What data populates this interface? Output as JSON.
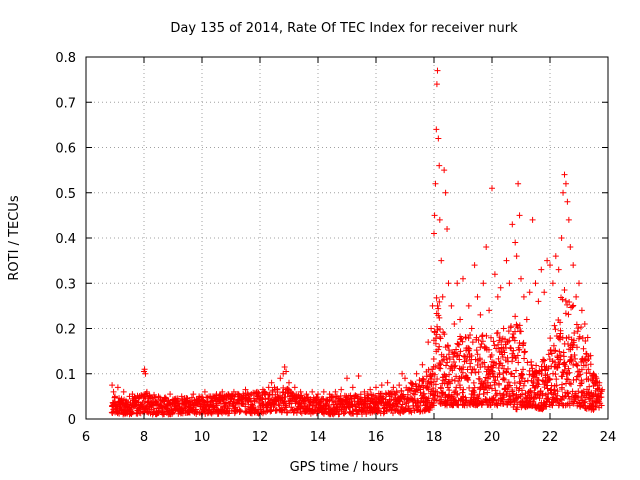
{
  "chart_data": {
    "type": "scatter",
    "title": "Day 135 of 2014, Rate Of TEC Index for receiver nurk",
    "xlabel": "GPS time / hours",
    "ylabel": "ROTI / TECUs",
    "xlim": [
      6,
      24
    ],
    "ylim": [
      0,
      0.8
    ],
    "xticks": [
      6,
      8,
      10,
      12,
      14,
      16,
      18,
      20,
      22,
      24
    ],
    "yticks": [
      0,
      0.1,
      0.2,
      0.3,
      0.4,
      0.5,
      0.6,
      0.7,
      0.8
    ],
    "grid": true,
    "marker": "+",
    "colors": {
      "series": "#ff0000"
    },
    "series": [
      {
        "name": "ROTI",
        "points": [
          [
            6.9,
            0.075
          ],
          [
            6.95,
            0.06
          ],
          [
            7.0,
            0.05
          ],
          [
            7.1,
            0.07
          ],
          [
            7.2,
            0.04
          ],
          [
            7.3,
            0.06
          ],
          [
            7.4,
            0.035
          ],
          [
            7.5,
            0.05
          ],
          [
            7.6,
            0.055
          ],
          [
            7.7,
            0.04
          ],
          [
            7.8,
            0.045
          ],
          [
            7.9,
            0.05
          ],
          [
            8.0,
            0.105
          ],
          [
            8.02,
            0.11
          ],
          [
            8.05,
            0.1
          ],
          [
            8.1,
            0.06
          ],
          [
            8.2,
            0.05
          ],
          [
            8.3,
            0.045
          ],
          [
            8.5,
            0.05
          ],
          [
            8.7,
            0.04
          ],
          [
            8.9,
            0.055
          ],
          [
            9.1,
            0.045
          ],
          [
            9.3,
            0.05
          ],
          [
            9.5,
            0.045
          ],
          [
            9.7,
            0.055
          ],
          [
            9.9,
            0.05
          ],
          [
            10.1,
            0.06
          ],
          [
            10.3,
            0.05
          ],
          [
            10.5,
            0.055
          ],
          [
            10.7,
            0.06
          ],
          [
            10.9,
            0.055
          ],
          [
            11.1,
            0.06
          ],
          [
            11.3,
            0.05
          ],
          [
            11.5,
            0.065
          ],
          [
            11.7,
            0.055
          ],
          [
            11.9,
            0.06
          ],
          [
            12.1,
            0.065
          ],
          [
            12.3,
            0.07
          ],
          [
            12.4,
            0.08
          ],
          [
            12.5,
            0.07
          ],
          [
            12.7,
            0.09
          ],
          [
            12.8,
            0.1
          ],
          [
            12.85,
            0.115
          ],
          [
            12.9,
            0.105
          ],
          [
            13.0,
            0.08
          ],
          [
            13.2,
            0.07
          ],
          [
            13.4,
            0.06
          ],
          [
            13.6,
            0.055
          ],
          [
            13.8,
            0.06
          ],
          [
            14.0,
            0.055
          ],
          [
            14.2,
            0.06
          ],
          [
            14.4,
            0.055
          ],
          [
            14.6,
            0.06
          ],
          [
            14.8,
            0.065
          ],
          [
            15.0,
            0.09
          ],
          [
            15.2,
            0.07
          ],
          [
            15.4,
            0.095
          ],
          [
            15.6,
            0.06
          ],
          [
            15.8,
            0.065
          ],
          [
            16.0,
            0.07
          ],
          [
            16.2,
            0.075
          ],
          [
            16.4,
            0.08
          ],
          [
            16.6,
            0.07
          ],
          [
            16.8,
            0.075
          ],
          [
            16.9,
            0.1
          ],
          [
            17.0,
            0.09
          ],
          [
            17.2,
            0.08
          ],
          [
            17.4,
            0.1
          ],
          [
            17.6,
            0.12
          ],
          [
            17.8,
            0.17
          ],
          [
            17.9,
            0.2
          ],
          [
            17.95,
            0.25
          ],
          [
            18.0,
            0.41
          ],
          [
            18.02,
            0.45
          ],
          [
            18.05,
            0.52
          ],
          [
            18.08,
            0.64
          ],
          [
            18.1,
            0.74
          ],
          [
            18.12,
            0.77
          ],
          [
            18.15,
            0.62
          ],
          [
            18.18,
            0.56
          ],
          [
            18.2,
            0.44
          ],
          [
            18.25,
            0.35
          ],
          [
            18.3,
            0.27
          ],
          [
            18.35,
            0.55
          ],
          [
            18.4,
            0.5
          ],
          [
            18.45,
            0.42
          ],
          [
            18.5,
            0.3
          ],
          [
            18.6,
            0.25
          ],
          [
            18.7,
            0.21
          ],
          [
            18.8,
            0.3
          ],
          [
            18.9,
            0.22
          ],
          [
            19.0,
            0.31
          ],
          [
            19.1,
            0.18
          ],
          [
            19.2,
            0.25
          ],
          [
            19.3,
            0.2
          ],
          [
            19.4,
            0.34
          ],
          [
            19.5,
            0.27
          ],
          [
            19.6,
            0.23
          ],
          [
            19.7,
            0.3
          ],
          [
            19.8,
            0.38
          ],
          [
            19.9,
            0.24
          ],
          [
            20.0,
            0.51
          ],
          [
            20.1,
            0.32
          ],
          [
            20.2,
            0.27
          ],
          [
            20.3,
            0.29
          ],
          [
            20.4,
            0.2
          ],
          [
            20.5,
            0.35
          ],
          [
            20.6,
            0.3
          ],
          [
            20.7,
            0.43
          ],
          [
            20.8,
            0.39
          ],
          [
            20.85,
            0.36
          ],
          [
            20.9,
            0.52
          ],
          [
            20.95,
            0.45
          ],
          [
            21.0,
            0.31
          ],
          [
            21.1,
            0.27
          ],
          [
            21.2,
            0.22
          ],
          [
            21.3,
            0.28
          ],
          [
            21.4,
            0.44
          ],
          [
            21.5,
            0.3
          ],
          [
            21.6,
            0.26
          ],
          [
            21.7,
            0.33
          ],
          [
            21.8,
            0.28
          ],
          [
            21.9,
            0.35
          ],
          [
            22.0,
            0.34
          ],
          [
            22.1,
            0.3
          ],
          [
            22.2,
            0.36
          ],
          [
            22.3,
            0.33
          ],
          [
            22.4,
            0.4
          ],
          [
            22.45,
            0.5
          ],
          [
            22.5,
            0.54
          ],
          [
            22.55,
            0.52
          ],
          [
            22.6,
            0.48
          ],
          [
            22.65,
            0.44
          ],
          [
            22.7,
            0.38
          ],
          [
            22.8,
            0.34
          ],
          [
            22.9,
            0.27
          ],
          [
            23.0,
            0.3
          ],
          [
            23.1,
            0.24
          ],
          [
            23.2,
            0.21
          ],
          [
            23.3,
            0.18
          ],
          [
            23.4,
            0.14
          ],
          [
            23.5,
            0.1
          ],
          [
            23.6,
            0.09
          ],
          [
            23.7,
            0.08
          ],
          [
            23.8,
            0.065
          ]
        ],
        "band": {
          "x": [
            6.9,
            7.5,
            8.0,
            9.0,
            10.0,
            11.0,
            12.0,
            12.9,
            13.5,
            14.5,
            15.5,
            16.5,
            17.0,
            17.5,
            17.9,
            18.1,
            18.3,
            18.7,
            19.0,
            19.5,
            20.0,
            20.5,
            20.9,
            21.3,
            21.7,
            22.0,
            22.5,
            22.9,
            23.3,
            23.8
          ],
          "low": [
            0.01,
            0.01,
            0.01,
            0.01,
            0.01,
            0.012,
            0.012,
            0.012,
            0.012,
            0.01,
            0.01,
            0.012,
            0.012,
            0.015,
            0.02,
            0.04,
            0.03,
            0.03,
            0.03,
            0.03,
            0.03,
            0.03,
            0.02,
            0.03,
            0.02,
            0.03,
            0.03,
            0.03,
            0.02,
            0.02
          ],
          "high": [
            0.05,
            0.045,
            0.06,
            0.045,
            0.05,
            0.055,
            0.06,
            0.07,
            0.05,
            0.05,
            0.055,
            0.06,
            0.07,
            0.09,
            0.12,
            0.3,
            0.2,
            0.15,
            0.2,
            0.18,
            0.2,
            0.18,
            0.25,
            0.14,
            0.12,
            0.18,
            0.3,
            0.25,
            0.15,
            0.06
          ]
        }
      }
    ]
  }
}
